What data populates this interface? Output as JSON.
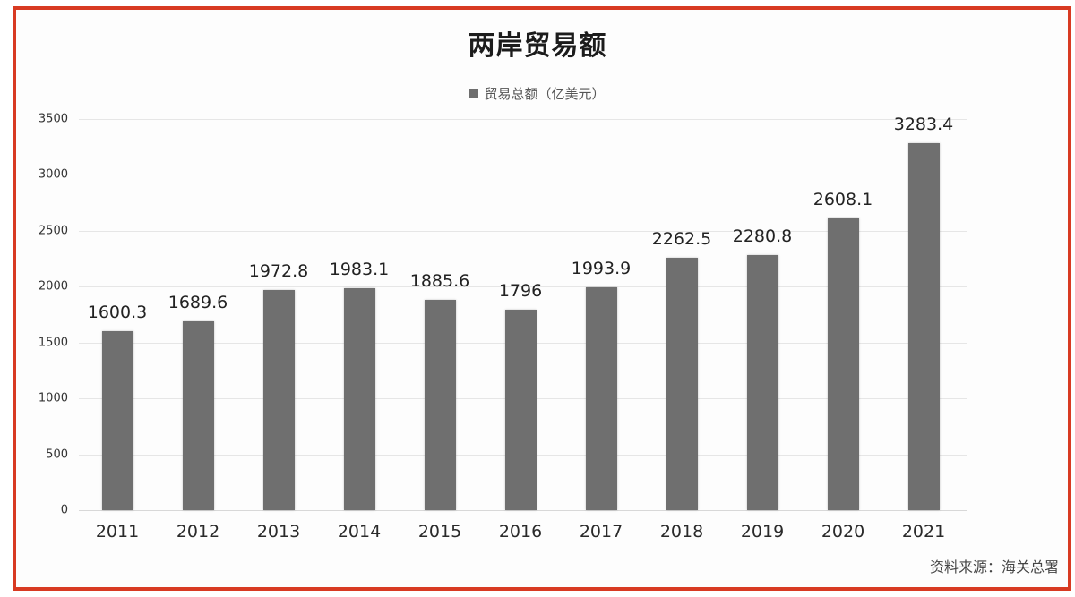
{
  "title": "两岸贸易额",
  "legend": {
    "label": "贸易总额（亿美元）",
    "color": "#6e6e6e"
  },
  "source": "资料来源：海关总署",
  "frame_color": "#d83a22",
  "y_ticks": [
    "0",
    "500",
    "1000",
    "1500",
    "2000",
    "2500",
    "3000",
    "3500"
  ],
  "chart_data": {
    "type": "bar",
    "title": "两岸贸易额",
    "xlabel": "",
    "ylabel": "",
    "legend": [
      "贸易总额（亿美元）"
    ],
    "legend_position": "top",
    "grid": true,
    "ylim": [
      0,
      3500
    ],
    "yticks": [
      0,
      500,
      1000,
      1500,
      2000,
      2500,
      3000,
      3500
    ],
    "categories": [
      "2011",
      "2012",
      "2013",
      "2014",
      "2015",
      "2016",
      "2017",
      "2018",
      "2019",
      "2020",
      "2021"
    ],
    "series": [
      {
        "name": "贸易总额（亿美元）",
        "values": [
          1600.3,
          1689.6,
          1972.8,
          1983.1,
          1885.6,
          1796,
          1993.9,
          2262.5,
          2280.8,
          2608.1,
          3283.4
        ],
        "labels": [
          "1600.3",
          "1689.6",
          "1972.8",
          "1983.1",
          "1885.6",
          "1796",
          "1993.9",
          "2262.5",
          "2280.8",
          "2608.1",
          "3283.4"
        ],
        "color": "#6f6f6f"
      }
    ],
    "annotations": [
      "资料来源：海关总署"
    ]
  }
}
